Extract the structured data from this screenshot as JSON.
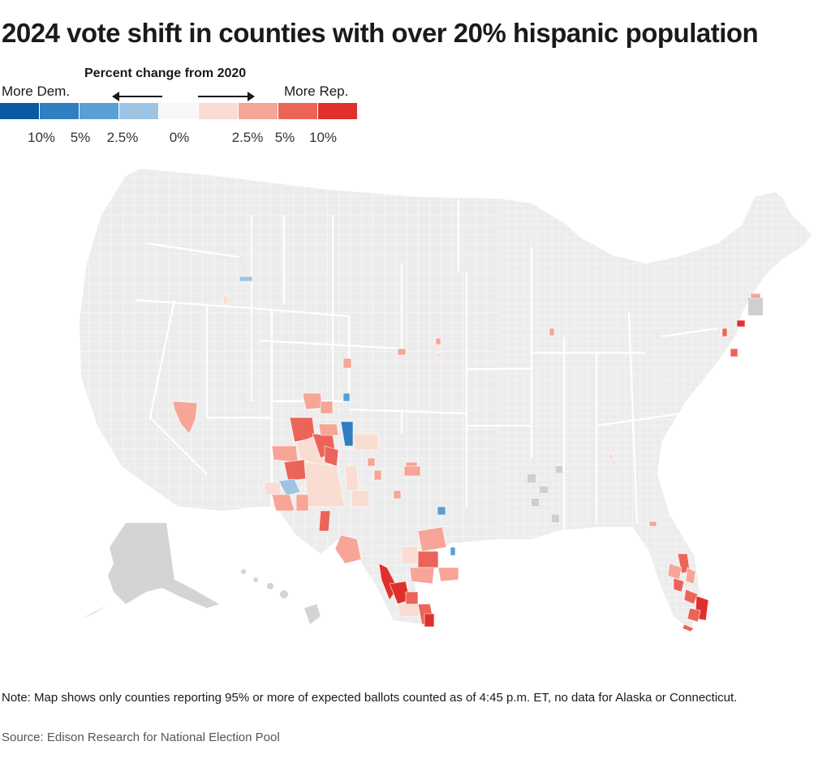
{
  "title": "2024 vote shift in counties with over 20% hispanic population",
  "legend": {
    "heading": "Percent change from 2020",
    "left_label": "More Dem.",
    "right_label": "More Rep.",
    "colors": [
      "#0b5aa3",
      "#2f7fc1",
      "#5a9fd4",
      "#9ec4e3",
      "#f7f7f7",
      "#f9ddd2",
      "#f6a596",
      "#ec6459",
      "#e0302c"
    ],
    "ticks": [
      "10%",
      "5%",
      "2.5%",
      "0%",
      "2.5%",
      "5%",
      "10%"
    ]
  },
  "colors": {
    "county_no_shift": "#ececec",
    "county_border": "#ffffff",
    "state_border": "#ffffff",
    "no_data": "#cfcfcf"
  },
  "note": "Note: Map shows only counties reporting 95% or more of expected ballots counted as of 4:45 p.m. ET, no data for Alaska or Connecticut.",
  "source": "Source: Edison Research for National Election Pool"
}
